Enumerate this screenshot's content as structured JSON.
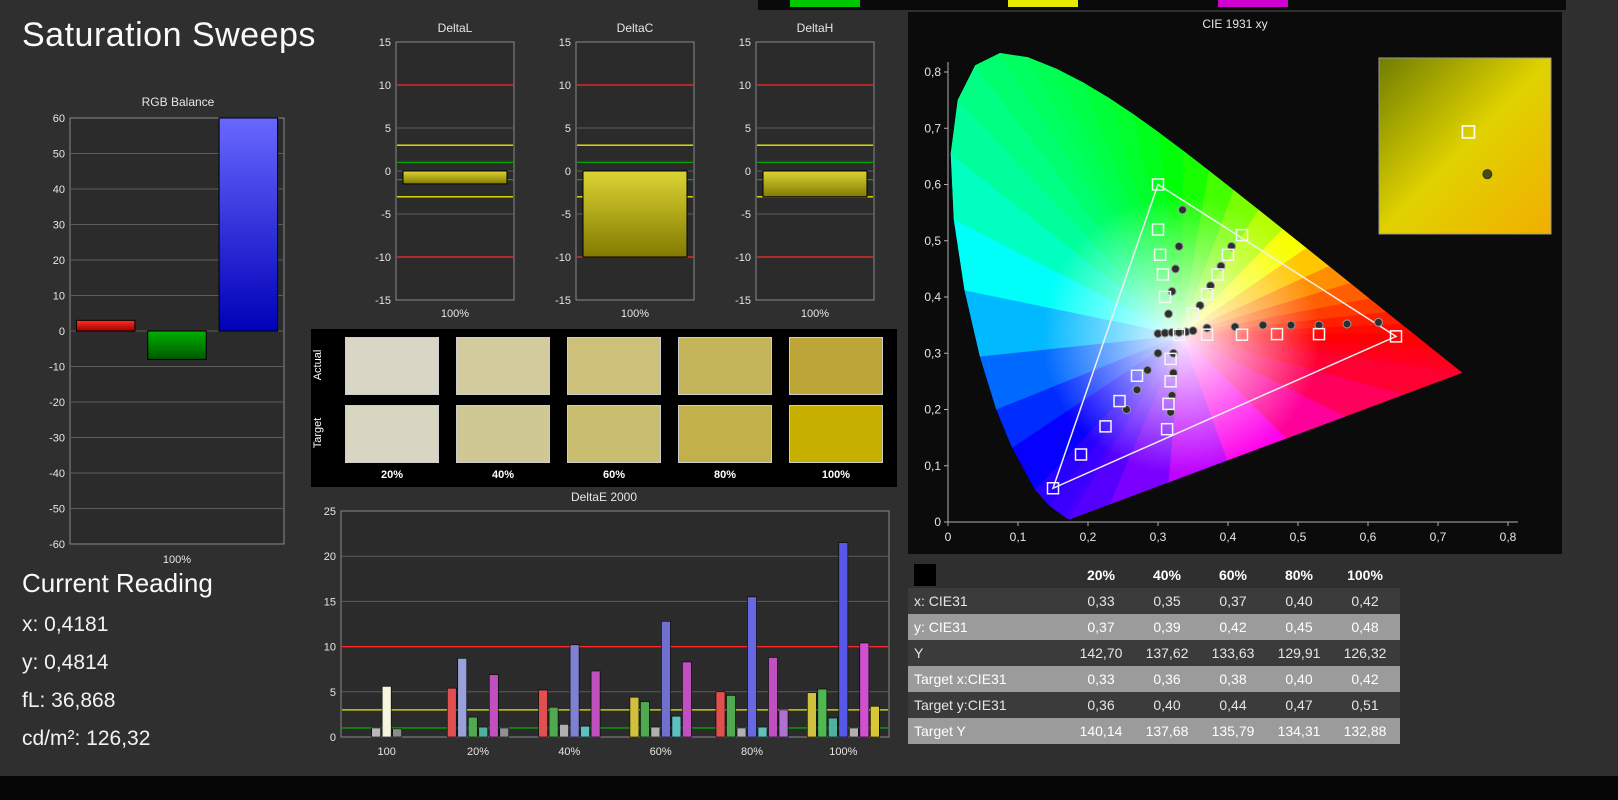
{
  "window": {
    "title": "Saturation Sweeps"
  },
  "top_strip": {
    "segments": [
      "#00c800",
      "#e8e800",
      "#d000d0"
    ]
  },
  "current_reading": {
    "heading": "Current Reading",
    "lines": [
      "x: 0,4181",
      "y: 0,4814",
      "fL: 36,868",
      "cd/m²: 126,32"
    ]
  },
  "swatches": {
    "row_labels": [
      "Actual",
      "Target"
    ],
    "col_labels": [
      "20%",
      "40%",
      "60%",
      "80%",
      "100%"
    ],
    "actual": [
      "#d9d6c6",
      "#d2cb9e",
      "#ccc07b",
      "#c5b55a",
      "#bda538"
    ],
    "target": [
      "#d8d5c1",
      "#cfc794",
      "#c9bd70",
      "#c2b14b",
      "#c7af00"
    ]
  },
  "table": {
    "columns": [
      "20%",
      "40%",
      "60%",
      "80%",
      "100%"
    ],
    "rows": [
      {
        "label": "x: CIE31",
        "values": [
          "0,33",
          "0,35",
          "0,37",
          "0,40",
          "0,42"
        ]
      },
      {
        "label": "y: CIE31",
        "values": [
          "0,37",
          "0,39",
          "0,42",
          "0,45",
          "0,48"
        ]
      },
      {
        "label": "Y",
        "values": [
          "142,70",
          "137,62",
          "133,63",
          "129,91",
          "126,32"
        ]
      },
      {
        "label": "Target x:CIE31",
        "values": [
          "0,33",
          "0,36",
          "0,38",
          "0,40",
          "0,42"
        ]
      },
      {
        "label": "Target y:CIE31",
        "values": [
          "0,36",
          "0,40",
          "0,44",
          "0,47",
          "0,51"
        ]
      },
      {
        "label": "Target Y",
        "values": [
          "140,14",
          "137,68",
          "135,79",
          "134,31",
          "132,88"
        ]
      }
    ]
  },
  "chart_data": [
    {
      "id": "rgb_balance",
      "type": "bar",
      "title": "RGB Balance",
      "ylim": [
        -60,
        60
      ],
      "ytick_step": 10,
      "x_tick_label": "100%",
      "bars": [
        {
          "name": "red",
          "value": 3,
          "grad": [
            "#ff3020",
            "#a00000"
          ]
        },
        {
          "name": "green",
          "value": -8,
          "grad": [
            "#00b000",
            "#005800"
          ]
        },
        {
          "name": "blue",
          "value": 60,
          "grad": [
            "#6868ff",
            "#0000b8"
          ]
        }
      ]
    },
    {
      "id": "delta_l",
      "type": "bar",
      "title": "DeltaL",
      "ylim": [
        -15,
        15
      ],
      "ytick_step": 5,
      "x_tick_label": "100%",
      "value": -1.5,
      "bar_grad": [
        "#dcd434",
        "#827a00"
      ],
      "ref_lines": [
        {
          "y": 10,
          "color": "#ff2a2a"
        },
        {
          "y": 3,
          "color": "#e8e800"
        },
        {
          "y": 1,
          "color": "#00a800"
        },
        {
          "y": -1,
          "color": "#00a800"
        },
        {
          "y": -3,
          "color": "#e8e800"
        },
        {
          "y": -10,
          "color": "#ff2a2a"
        }
      ]
    },
    {
      "id": "delta_c",
      "type": "bar",
      "title": "DeltaC",
      "ylim": [
        -15,
        15
      ],
      "ytick_step": 5,
      "x_tick_label": "100%",
      "value": -10,
      "bar_grad": [
        "#dcd434",
        "#827a00"
      ],
      "ref_lines": [
        {
          "y": 10,
          "color": "#ff2a2a"
        },
        {
          "y": 3,
          "color": "#e8e800"
        },
        {
          "y": 1,
          "color": "#00a800"
        },
        {
          "y": -1,
          "color": "#00a800"
        },
        {
          "y": -3,
          "color": "#e8e800"
        },
        {
          "y": -10,
          "color": "#ff2a2a"
        }
      ]
    },
    {
      "id": "delta_h",
      "type": "bar",
      "title": "DeltaH",
      "ylim": [
        -15,
        15
      ],
      "ytick_step": 5,
      "x_tick_label": "100%",
      "value": -3,
      "bar_grad": [
        "#dcd434",
        "#827a00"
      ],
      "ref_lines": [
        {
          "y": 10,
          "color": "#ff2a2a"
        },
        {
          "y": 3,
          "color": "#e8e800"
        },
        {
          "y": 1,
          "color": "#00a800"
        },
        {
          "y": -1,
          "color": "#00a800"
        },
        {
          "y": -3,
          "color": "#e8e800"
        },
        {
          "y": -10,
          "color": "#ff2a2a"
        }
      ]
    },
    {
      "id": "delta_e2000",
      "type": "bar",
      "title": "DeltaE 2000",
      "ylim": [
        0,
        25
      ],
      "ytick_step": 5,
      "ref_lines": [
        {
          "y": 10,
          "color": "#ff2a2a"
        },
        {
          "y": 3,
          "color": "#e8e800"
        },
        {
          "y": 1,
          "color": "#00a800"
        }
      ],
      "groups": [
        {
          "label": "100",
          "bars": [
            {
              "color": "#b8b8b8",
              "value": 1.0
            },
            {
              "color": "#f5f5e0",
              "value": 5.6
            },
            {
              "color": "#8a8a8a",
              "value": 0.9
            }
          ]
        },
        {
          "label": "20%",
          "bars": [
            {
              "color": "#e05050",
              "value": 5.4
            },
            {
              "color": "#9aa0d8",
              "value": 8.7
            },
            {
              "color": "#50a850",
              "value": 2.2
            },
            {
              "color": "#50b0a0",
              "value": 1.1
            },
            {
              "color": "#c050c0",
              "value": 6.9
            },
            {
              "color": "#909090",
              "value": 1.0
            }
          ]
        },
        {
          "label": "40%",
          "bars": [
            {
              "color": "#e05050",
              "value": 5.2
            },
            {
              "color": "#50a850",
              "value": 3.3
            },
            {
              "color": "#b0b0b0",
              "value": 1.4
            },
            {
              "color": "#8080d0",
              "value": 10.2
            },
            {
              "color": "#60c0c0",
              "value": 1.2
            },
            {
              "color": "#c050c0",
              "value": 7.3
            }
          ]
        },
        {
          "label": "60%",
          "bars": [
            {
              "color": "#d0c040",
              "value": 4.4
            },
            {
              "color": "#50a850",
              "value": 3.9
            },
            {
              "color": "#b0b0b0",
              "value": 1.1
            },
            {
              "color": "#7070d0",
              "value": 12.8
            },
            {
              "color": "#60c0c0",
              "value": 2.3
            },
            {
              "color": "#c050c0",
              "value": 8.3
            }
          ]
        },
        {
          "label": "80%",
          "bars": [
            {
              "color": "#e05050",
              "value": 5.0
            },
            {
              "color": "#50a850",
              "value": 4.6
            },
            {
              "color": "#b0b0b0",
              "value": 1.0
            },
            {
              "color": "#6868e0",
              "value": 15.5
            },
            {
              "color": "#60c0c0",
              "value": 1.1
            },
            {
              "color": "#c050c0",
              "value": 8.8
            },
            {
              "color": "#b070d0",
              "value": 3.0
            }
          ]
        },
        {
          "label": "100%",
          "bars": [
            {
              "color": "#d0c040",
              "value": 4.9
            },
            {
              "color": "#50b850",
              "value": 5.3
            },
            {
              "color": "#50b0a0",
              "value": 2.1
            },
            {
              "color": "#5858e8",
              "value": 21.5
            },
            {
              "color": "#b0b0b0",
              "value": 1.0
            },
            {
              "color": "#d050d0",
              "value": 10.4
            },
            {
              "color": "#d8c838",
              "value": 3.4
            }
          ]
        }
      ]
    },
    {
      "id": "cie1931",
      "type": "scatter",
      "title": "CIE 1931 xy",
      "xlim": [
        0,
        0.8
      ],
      "ylim": [
        0,
        0.8
      ],
      "tick_labels": [
        "0",
        "0,1",
        "0,2",
        "0,3",
        "0,4",
        "0,5",
        "0,6",
        "0,7",
        "0,8"
      ],
      "gamut_triangle": [
        [
          0.64,
          0.33
        ],
        [
          0.3,
          0.6
        ],
        [
          0.15,
          0.06
        ]
      ],
      "white_point": [
        0.333,
        0.333
      ],
      "target_points": [
        [
          0.33,
          0.333
        ],
        [
          0.37,
          0.333
        ],
        [
          0.42,
          0.333
        ],
        [
          0.47,
          0.334
        ],
        [
          0.53,
          0.334
        ],
        [
          0.64,
          0.33
        ],
        [
          0.31,
          0.4
        ],
        [
          0.307,
          0.44
        ],
        [
          0.303,
          0.475
        ],
        [
          0.3,
          0.52
        ],
        [
          0.3,
          0.6
        ],
        [
          0.35,
          0.37
        ],
        [
          0.37,
          0.405
        ],
        [
          0.385,
          0.44
        ],
        [
          0.4,
          0.475
        ],
        [
          0.42,
          0.51
        ],
        [
          0.27,
          0.26
        ],
        [
          0.245,
          0.215
        ],
        [
          0.225,
          0.17
        ],
        [
          0.19,
          0.12
        ],
        [
          0.15,
          0.06
        ],
        [
          0.318,
          0.29
        ],
        [
          0.318,
          0.25
        ],
        [
          0.315,
          0.21
        ],
        [
          0.313,
          0.165
        ]
      ],
      "measured_points": [
        [
          0.3,
          0.335
        ],
        [
          0.31,
          0.336
        ],
        [
          0.32,
          0.337
        ],
        [
          0.33,
          0.337
        ],
        [
          0.34,
          0.338
        ],
        [
          0.35,
          0.34
        ],
        [
          0.37,
          0.345
        ],
        [
          0.41,
          0.347
        ],
        [
          0.45,
          0.35
        ],
        [
          0.49,
          0.35
        ],
        [
          0.53,
          0.35
        ],
        [
          0.57,
          0.352
        ],
        [
          0.615,
          0.355
        ],
        [
          0.315,
          0.37
        ],
        [
          0.32,
          0.41
        ],
        [
          0.325,
          0.45
        ],
        [
          0.33,
          0.49
        ],
        [
          0.335,
          0.555
        ],
        [
          0.36,
          0.385
        ],
        [
          0.375,
          0.42
        ],
        [
          0.39,
          0.455
        ],
        [
          0.405,
          0.49
        ],
        [
          0.3,
          0.3
        ],
        [
          0.285,
          0.27
        ],
        [
          0.27,
          0.235
        ],
        [
          0.255,
          0.2
        ],
        [
          0.322,
          0.3
        ],
        [
          0.322,
          0.265
        ],
        [
          0.32,
          0.225
        ],
        [
          0.318,
          0.195
        ]
      ],
      "inset": {
        "square": [
          0.52,
          0.42
        ],
        "circle": [
          0.63,
          0.66
        ],
        "gradient": [
          "#6f7e00",
          "#e0d200",
          "#f2ae00"
        ]
      }
    }
  ]
}
